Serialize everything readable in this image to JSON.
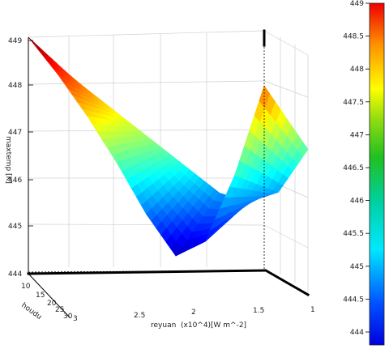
{
  "chart_data": {
    "type": "surface3d",
    "zlabel": "maxtemp",
    "zunit": "[K]",
    "xlabel": "reyuan",
    "xscale": "(x10^4)",
    "xunit": "[W m^-2]",
    "ylabel": "houdu",
    "x_ticks": [
      "2.5",
      "2",
      "1.5",
      "1"
    ],
    "y_ticks": [
      "10",
      "15",
      "20",
      "25",
      "30",
      "3"
    ],
    "z_ticks": [
      "449",
      "448",
      "447",
      "446",
      "445",
      "444"
    ],
    "colorbar_ticks": [
      "449",
      "448.5",
      "448",
      "447.5",
      "447",
      "446.5",
      "446",
      "445.5",
      "445",
      "444.5",
      "444"
    ],
    "zlim": [
      444,
      449
    ],
    "grid": true,
    "colormap": "jet",
    "surface": {
      "reyuan_x1e4": [
        3.0,
        2.75,
        2.5,
        2.25,
        2.0,
        1.75,
        1.5,
        1.25,
        1.0
      ],
      "houdu_edges": [
        10,
        30
      ],
      "maxtemp_at_houdu_10": [
        449.0,
        448.2,
        447.3,
        446.3,
        445.2,
        444.3,
        444.6,
        446.0,
        447.9
      ],
      "maxtemp_at_houdu_30": [
        447.9,
        447.4,
        446.9,
        446.4,
        445.9,
        445.4,
        445.2,
        445.4,
        446.3
      ]
    }
  }
}
